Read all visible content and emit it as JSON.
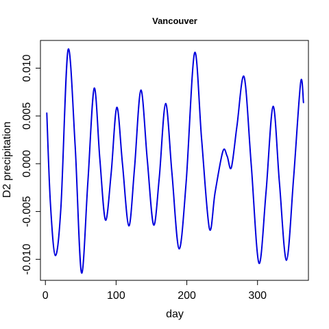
{
  "chart_data": {
    "type": "line",
    "title": "Vancouver",
    "xlabel": "day",
    "ylabel": "D2 precipitation",
    "xlim": [
      -7,
      372
    ],
    "ylim": [
      -0.0122,
      0.0129
    ],
    "xticks": [
      0,
      100,
      200,
      300
    ],
    "xtick_labels": [
      "0",
      "100",
      "200",
      "300"
    ],
    "yticks": [
      -0.01,
      -0.005,
      0,
      0.005,
      0.01
    ],
    "ytick_labels": [
      "-0.010",
      "-0.005",
      "0.000",
      "0.005",
      "0.010"
    ],
    "grid": false,
    "legend": "none",
    "series": [
      {
        "color": "#0000dd",
        "x": [
          2,
          7,
          14,
          22,
          32,
          42,
          51,
          60,
          69,
          77,
          85,
          93,
          101,
          109,
          118,
          126,
          135,
          144,
          153,
          161,
          170,
          179,
          189,
          199,
          211,
          221,
          232,
          240,
          251,
          257,
          263,
          271,
          281,
          291,
          302,
          312,
          322,
          331,
          341,
          351,
          361,
          365
        ],
        "y": [
          0.0053,
          -0.004,
          -0.0096,
          -0.0045,
          0.0119,
          0.002,
          -0.0114,
          -0.002,
          0.0079,
          0.0005,
          -0.0059,
          -0.001,
          0.0059,
          0.0,
          -0.0065,
          -0.0005,
          0.0077,
          0.0005,
          -0.0064,
          -0.0015,
          0.0063,
          -0.001,
          -0.0089,
          -0.002,
          0.0116,
          0.0025,
          -0.0068,
          -0.003,
          0.0013,
          0.0008,
          -0.0004,
          0.004,
          0.0091,
          0.0,
          -0.0104,
          -0.003,
          0.006,
          -0.002,
          -0.0101,
          -0.0015,
          0.0085,
          0.0064
        ]
      }
    ]
  }
}
